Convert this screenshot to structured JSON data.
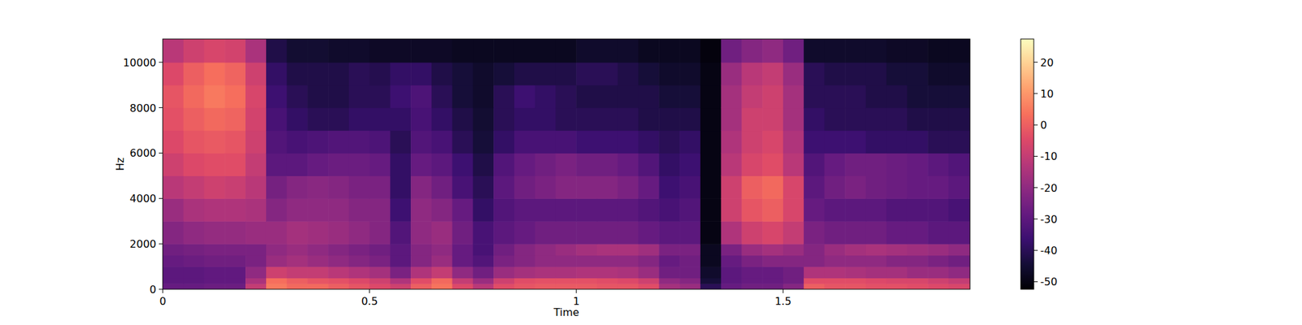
{
  "chart_data": {
    "type": "heatmap",
    "xlabel": "Time",
    "ylabel": "Hz",
    "color": "magma",
    "xlim": [
      0,
      1.952
    ],
    "ylim": [
      0,
      11025
    ],
    "xticks": [
      0,
      0.5,
      1,
      1.5
    ],
    "yticks": [
      0,
      2000,
      4000,
      6000,
      8000,
      10000
    ],
    "x_bins": [
      0,
      0.05,
      0.1,
      0.15,
      0.2,
      0.25,
      0.3,
      0.35,
      0.4,
      0.45,
      0.5,
      0.55,
      0.6,
      0.65,
      0.7,
      0.75,
      0.8,
      0.85,
      0.9,
      0.95,
      1.0,
      1.05,
      1.1,
      1.15,
      1.2,
      1.25,
      1.3,
      1.35,
      1.4,
      1.45,
      1.5,
      1.55,
      1.6,
      1.65,
      1.7,
      1.75,
      1.8,
      1.85,
      1.9,
      1.952
    ],
    "y_bins": [
      0,
      250,
      500,
      1000,
      1500,
      2000,
      3000,
      4000,
      5000,
      6000,
      7000,
      8000,
      9000,
      10000,
      11025
    ],
    "values": [
      [
        -28,
        -30,
        -30,
        -28,
        -26,
        -22,
        -18,
        -12,
        -8,
        -5,
        -3,
        -2,
        -5,
        -12
      ],
      [
        -28,
        -30,
        -30,
        -27,
        -25,
        -20,
        -15,
        -10,
        -5,
        -2,
        0,
        2,
        0,
        -8
      ],
      [
        -27,
        -29,
        -29,
        -26,
        -24,
        -19,
        -14,
        -8,
        -4,
        -1,
        2,
        5,
        3,
        -6
      ],
      [
        -27,
        -29,
        -29,
        -26,
        -24,
        -19,
        -14,
        -9,
        -4,
        -2,
        1,
        3,
        1,
        -7
      ],
      [
        -10,
        -15,
        -20,
        -24,
        -24,
        -18,
        -15,
        -12,
        -10,
        -8,
        -7,
        -6,
        -8,
        -15
      ],
      [
        5,
        3,
        -8,
        -18,
        -20,
        -18,
        -22,
        -25,
        -30,
        -32,
        -34,
        -36,
        -38,
        -42
      ],
      [
        2,
        0,
        -10,
        -16,
        -18,
        -16,
        -20,
        -22,
        -30,
        -34,
        -38,
        -40,
        -42,
        -45
      ],
      [
        2,
        -2,
        -10,
        -18,
        -20,
        -17,
        -20,
        -21,
        -28,
        -33,
        -40,
        -42,
        -42,
        -45
      ],
      [
        0,
        -3,
        -12,
        -20,
        -22,
        -18,
        -20,
        -22,
        -27,
        -32,
        -40,
        -42,
        -42,
        -46
      ],
      [
        -2,
        -5,
        -14,
        -22,
        -24,
        -20,
        -22,
        -24,
        -27,
        -32,
        -38,
        -40,
        -40,
        -46
      ],
      [
        -5,
        -8,
        -16,
        -24,
        -26,
        -22,
        -22,
        -24,
        -28,
        -33,
        -38,
        -40,
        -41,
        -47
      ],
      [
        -8,
        -14,
        -24,
        -30,
        -30,
        -32,
        -36,
        -38,
        -38,
        -40,
        -38,
        -36,
        -38,
        -47
      ],
      [
        0,
        -4,
        -14,
        -22,
        -22,
        -20,
        -20,
        -22,
        -28,
        -32,
        -34,
        -33,
        -38,
        -47
      ],
      [
        4,
        2,
        -10,
        -18,
        -20,
        -18,
        -22,
        -26,
        -30,
        -34,
        -38,
        -40,
        -42,
        -47
      ],
      [
        -5,
        -10,
        -20,
        -28,
        -28,
        -26,
        -28,
        -34,
        -36,
        -40,
        -42,
        -44,
        -44,
        -48
      ],
      [
        -12,
        -18,
        -26,
        -32,
        -34,
        -34,
        -38,
        -40,
        -42,
        -44,
        -45,
        -46,
        -46,
        -48
      ],
      [
        -4,
        -8,
        -18,
        -24,
        -26,
        -30,
        -32,
        -30,
        -32,
        -38,
        -40,
        -40,
        -44,
        -48
      ],
      [
        -2,
        -4,
        -16,
        -22,
        -22,
        -28,
        -30,
        -26,
        -28,
        -34,
        -38,
        -36,
        -42,
        -48
      ],
      [
        -1,
        -3,
        -15,
        -20,
        -20,
        -26,
        -30,
        -24,
        -26,
        -34,
        -38,
        -38,
        -42,
        -48
      ],
      [
        -1,
        -3,
        -15,
        -20,
        -18,
        -26,
        -30,
        -22,
        -24,
        -34,
        -40,
        -40,
        -42,
        -48
      ],
      [
        -1,
        -3,
        -14,
        -20,
        -16,
        -26,
        -30,
        -22,
        -26,
        -36,
        -40,
        -42,
        -40,
        -46
      ],
      [
        -2,
        -4,
        -14,
        -20,
        -15,
        -26,
        -30,
        -22,
        -26,
        -36,
        -40,
        -42,
        -40,
        -46
      ],
      [
        -2,
        -5,
        -15,
        -20,
        -15,
        -26,
        -30,
        -24,
        -28,
        -36,
        -40,
        -42,
        -42,
        -46
      ],
      [
        -4,
        -8,
        -18,
        -22,
        -17,
        -28,
        -32,
        -28,
        -32,
        -38,
        -42,
        -42,
        -44,
        -48
      ],
      [
        -16,
        -20,
        -26,
        -28,
        -24,
        -30,
        -34,
        -36,
        -38,
        -40,
        -42,
        -44,
        -46,
        -48
      ],
      [
        -18,
        -22,
        -26,
        -26,
        -24,
        -30,
        -32,
        -34,
        -36,
        -38,
        -42,
        -44,
        -46,
        -48
      ],
      [
        -40,
        -44,
        -46,
        -48,
        -48,
        -50,
        -50,
        -50,
        -50,
        -50,
        -50,
        -50,
        -50,
        -51
      ],
      [
        -28,
        -30,
        -30,
        -28,
        -24,
        -14,
        -8,
        -8,
        -12,
        -14,
        -16,
        -16,
        -18,
        -26
      ],
      [
        -26,
        -28,
        -28,
        -24,
        -18,
        -8,
        -2,
        0,
        -6,
        -8,
        -8,
        -10,
        -12,
        -22
      ],
      [
        -26,
        -28,
        -28,
        -22,
        -16,
        -6,
        0,
        2,
        -4,
        -6,
        -8,
        -8,
        -10,
        -20
      ],
      [
        -22,
        -26,
        -26,
        -22,
        -18,
        -10,
        -6,
        -6,
        -12,
        -14,
        -16,
        -16,
        -18,
        -26
      ],
      [
        0,
        -4,
        -14,
        -22,
        -22,
        -24,
        -28,
        -30,
        -32,
        -36,
        -38,
        -40,
        -40,
        -46
      ],
      [
        -2,
        -4,
        -14,
        -20,
        -18,
        -26,
        -30,
        -26,
        -28,
        -36,
        -40,
        -40,
        -42,
        -46
      ],
      [
        -2,
        -4,
        -15,
        -20,
        -16,
        -26,
        -30,
        -24,
        -26,
        -36,
        -40,
        -40,
        -42,
        -46
      ],
      [
        -3,
        -5,
        -16,
        -20,
        -15,
        -26,
        -30,
        -26,
        -26,
        -38,
        -40,
        -42,
        -42,
        -46
      ],
      [
        -3,
        -6,
        -16,
        -22,
        -16,
        -28,
        -32,
        -27,
        -27,
        -38,
        -40,
        -42,
        -44,
        -47
      ],
      [
        -4,
        -6,
        -18,
        -22,
        -17,
        -28,
        -32,
        -28,
        -28,
        -38,
        -42,
        -44,
        -44,
        -47
      ],
      [
        -5,
        -8,
        -18,
        -24,
        -18,
        -30,
        -32,
        -28,
        -30,
        -40,
        -42,
        -44,
        -46,
        -48
      ],
      [
        -6,
        -10,
        -20,
        -26,
        -20,
        -30,
        -34,
        -30,
        -32,
        -40,
        -42,
        -44,
        -46,
        -48
      ]
    ],
    "colorbar_range": [
      -52.4,
      27.4
    ],
    "colorbar_ticks": [
      -50,
      -40,
      -30,
      -20,
      -10,
      0,
      10,
      20
    ]
  }
}
